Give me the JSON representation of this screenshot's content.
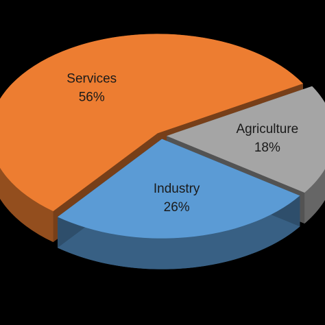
{
  "chart_data": {
    "type": "pie",
    "categories": [
      "Services",
      "Agriculture",
      "Industry"
    ],
    "values": [
      56,
      18,
      26
    ],
    "value_labels": [
      "56%",
      "18%",
      "26%"
    ],
    "colors": [
      "#ED7D31",
      "#A5A5A5",
      "#5B9BD5"
    ]
  }
}
